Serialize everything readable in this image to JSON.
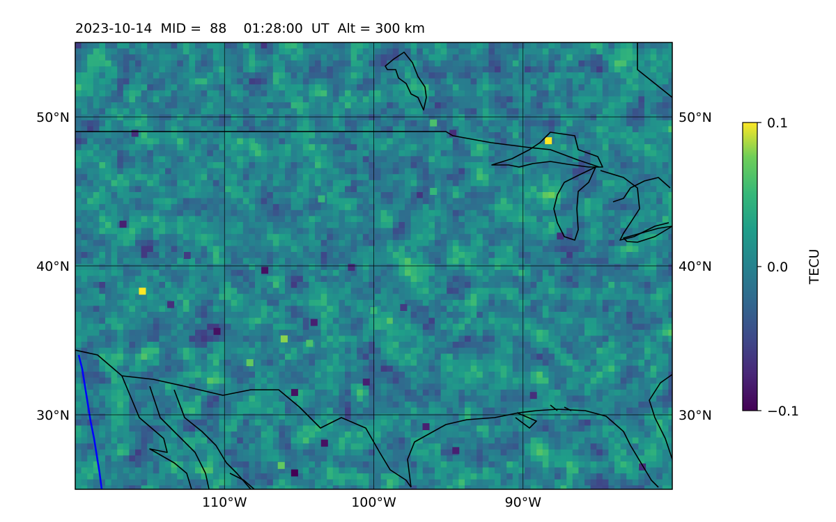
{
  "chart_data": {
    "type": "heatmap",
    "title": "2023-10-14  MID =  88    01:28:00  UT  Alt = 300 km",
    "x_ticks": [
      {
        "value": -110,
        "label": "110°W"
      },
      {
        "value": -100,
        "label": "100°W"
      },
      {
        "value": -90,
        "label": "90°W"
      }
    ],
    "y_ticks": [
      {
        "value": 50,
        "label": "50°N"
      },
      {
        "value": 40,
        "label": "40°N"
      },
      {
        "value": 30,
        "label": "30°N"
      }
    ],
    "xlim": [
      -120,
      -80
    ],
    "ylim": [
      25,
      55
    ],
    "grid": true,
    "colorbar": {
      "label": "TECU",
      "range": [
        -0.1,
        0.1
      ],
      "ticks": [
        {
          "value": 0.1,
          "label": "0.1"
        },
        {
          "value": 0.0,
          "label": "0.0"
        },
        {
          "value": -0.1,
          "label": "−0.1"
        }
      ],
      "colormap": "viridis"
    },
    "data_note_visible": null,
    "typical_value": 0.0,
    "value_range": [
      -0.1,
      0.1
    ],
    "hotspots": [
      {
        "lon": -88.3,
        "lat": 48.4,
        "value": 0.1
      },
      {
        "lon": -115.5,
        "lat": 38.3,
        "value": 0.1
      },
      {
        "lon": -106.0,
        "lat": 35.1,
        "value": 0.08
      },
      {
        "lon": -108.3,
        "lat": 33.5,
        "value": 0.07
      },
      {
        "lon": -106.2,
        "lat": 26.6,
        "value": 0.07
      },
      {
        "lon": -104.3,
        "lat": 34.8,
        "value": 0.06
      },
      {
        "lon": -105.3,
        "lat": 26.1,
        "value": -0.1
      },
      {
        "lon": -103.3,
        "lat": 28.1,
        "value": -0.09
      },
      {
        "lon": -105.3,
        "lat": 31.5,
        "value": -0.09
      },
      {
        "lon": -110.5,
        "lat": 35.6,
        "value": -0.09
      },
      {
        "lon": -116.8,
        "lat": 42.8,
        "value": -0.08
      },
      {
        "lon": -107.3,
        "lat": 39.7,
        "value": -0.09
      },
      {
        "lon": -94.5,
        "lat": 27.6,
        "value": -0.08
      },
      {
        "lon": -96.5,
        "lat": 29.2,
        "value": -0.08
      },
      {
        "lon": -113.6,
        "lat": 37.4,
        "value": -0.07
      },
      {
        "lon": -101.5,
        "lat": 39.9,
        "value": -0.07
      },
      {
        "lon": -104.0,
        "lat": 36.2,
        "value": -0.08
      },
      {
        "lon": -100.5,
        "lat": 32.2,
        "value": -0.08
      },
      {
        "lon": -116.0,
        "lat": 48.9,
        "value": -0.07
      },
      {
        "lon": -94.7,
        "lat": 48.9,
        "value": -0.07
      },
      {
        "lon": -87.5,
        "lat": 42.0,
        "value": -0.07
      },
      {
        "lon": -89.3,
        "lat": 31.3,
        "value": -0.07
      },
      {
        "lon": -82.0,
        "lat": 26.5,
        "value": -0.07
      },
      {
        "lon": -112.5,
        "lat": 40.7,
        "value": -0.06
      },
      {
        "lon": -98.0,
        "lat": 37.2,
        "value": -0.06
      },
      {
        "lon": -96.0,
        "lat": 45.0,
        "value": 0.05
      },
      {
        "lon": -103.5,
        "lat": 44.5,
        "value": 0.05
      },
      {
        "lon": -96.0,
        "lat": 49.6,
        "value": 0.06
      },
      {
        "lon": -100.0,
        "lat": 37.0,
        "value": 0.05
      },
      {
        "lon": -108.0,
        "lat": 48.0,
        "value": 0.05
      }
    ],
    "features": {
      "coastlines_color": "#000000",
      "borders_color": "#000000",
      "river_color": "#0000ff"
    }
  }
}
